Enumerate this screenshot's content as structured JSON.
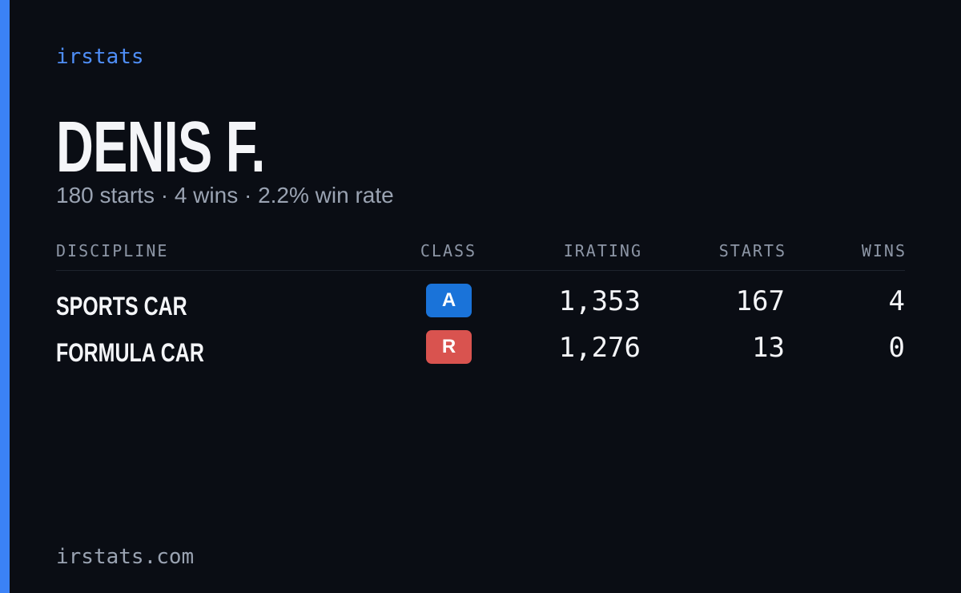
{
  "brand": "irstats",
  "profile": {
    "name": "DENIS F.",
    "summary": "180 starts · 4 wins · 2.2% win rate"
  },
  "table": {
    "headers": [
      "DISCIPLINE",
      "CLASS",
      "IRATING",
      "STARTS",
      "WINS"
    ],
    "rows": [
      [
        "SPORTS CAR",
        "A",
        "1,353",
        "167",
        "4"
      ],
      [
        "FORMULA CAR",
        "R",
        "1,276",
        "13",
        "0"
      ]
    ]
  },
  "footer": "irstats.com"
}
